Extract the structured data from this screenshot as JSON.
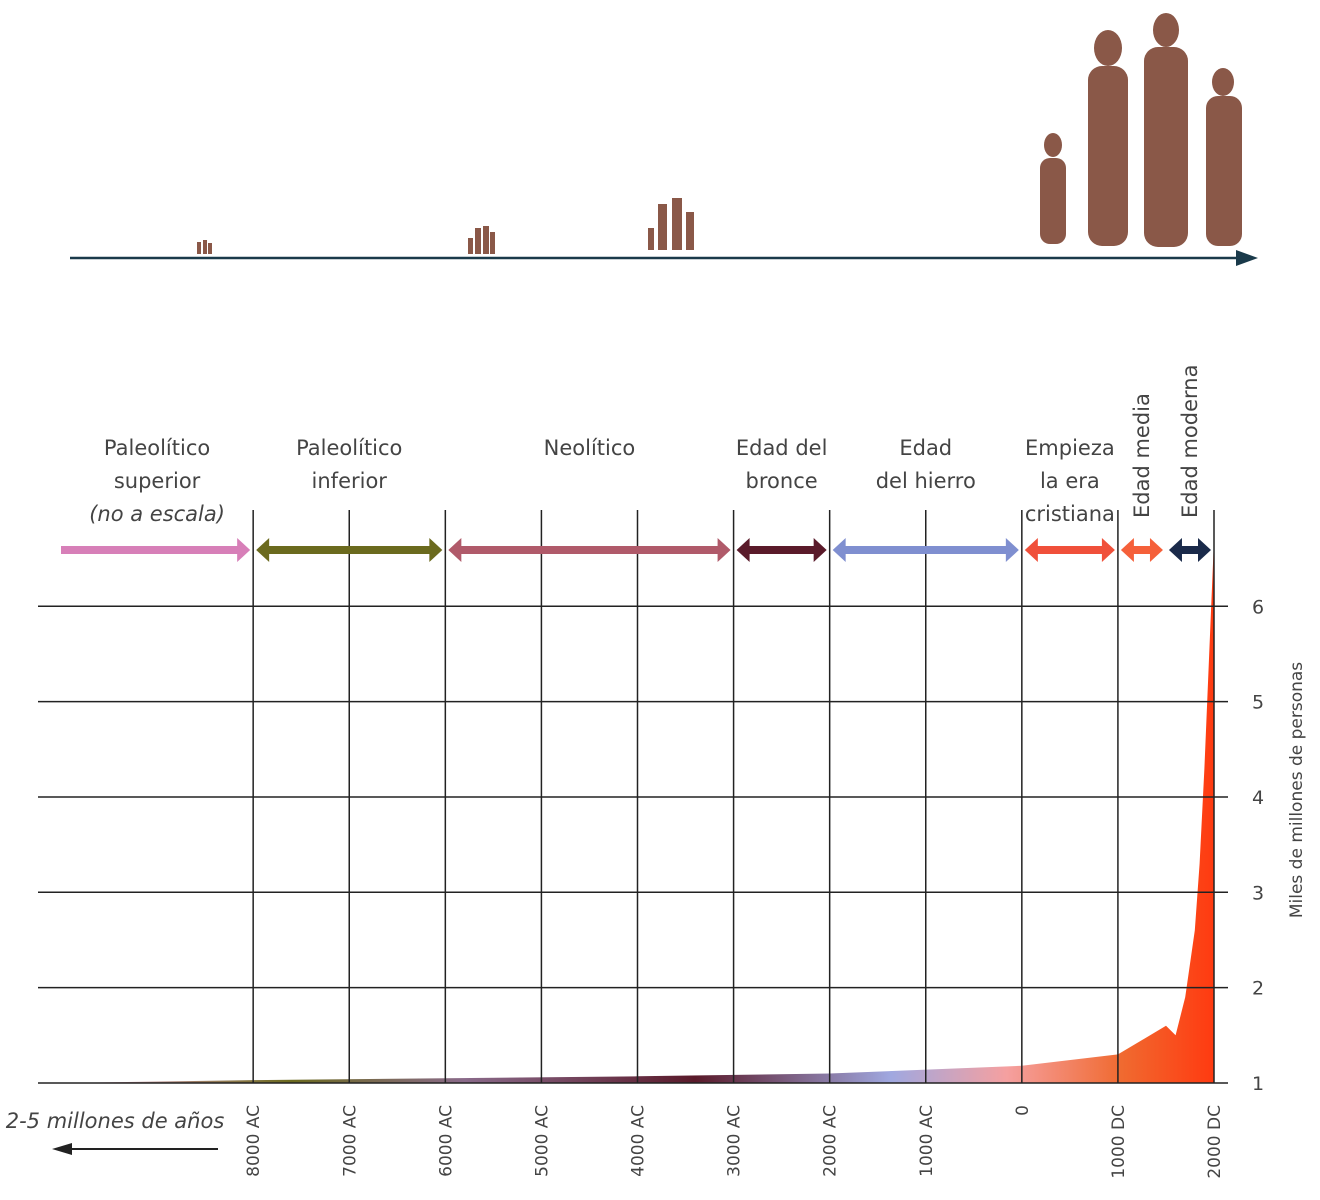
{
  "chart_data": {
    "type": "area",
    "y_title": "Miles de millones de personas",
    "note": "2-5 millones de años",
    "x": [
      -10000,
      -8000,
      -6000,
      -4000,
      -2000,
      0,
      1000,
      1500,
      1600,
      1700,
      1800,
      1850,
      1900,
      1950,
      2000
    ],
    "values": [
      1,
      1.03,
      1.05,
      1.07,
      1.1,
      1.18,
      1.3,
      1.6,
      1.5,
      1.9,
      2.6,
      3.3,
      4.3,
      5.5,
      6.7
    ],
    "xlim": [
      -10000,
      2000
    ],
    "ylim": [
      1,
      6.8
    ],
    "xticks": [
      {
        "value": -8000,
        "label": "8000 AC"
      },
      {
        "value": -7000,
        "label": "7000 AC"
      },
      {
        "value": -6000,
        "label": "6000 AC"
      },
      {
        "value": -5000,
        "label": "5000 AC"
      },
      {
        "value": -4000,
        "label": "4000 AC"
      },
      {
        "value": -3000,
        "label": "3000 AC"
      },
      {
        "value": -2000,
        "label": "2000 AC"
      },
      {
        "value": -1000,
        "label": "1000 AC"
      },
      0,
      {
        "value": 1000,
        "label": "1000 DC"
      },
      {
        "value": 2000,
        "label": "2000 DC"
      }
    ],
    "yticks": [
      1,
      2,
      3,
      4,
      5,
      6
    ],
    "grid": true,
    "periods": [
      {
        "lines": [
          "Paleolítico",
          "superior",
          "(no a escala)"
        ],
        "start": -10000,
        "end": -8000,
        "color": "#d77fb8"
      },
      {
        "lines": [
          "Paleolítico",
          "inferior"
        ],
        "start": -8000,
        "end": -6000,
        "color": "#6b6a1e"
      },
      {
        "lines": [
          "Neolítico"
        ],
        "start": -6000,
        "end": -3000,
        "color": "#b05a6a"
      },
      {
        "lines": [
          "Edad del",
          "bronce"
        ],
        "start": -3000,
        "end": -2000,
        "color": "#5a1a2a"
      },
      {
        "lines": [
          "Edad",
          "del hierro"
        ],
        "start": -2000,
        "end": 0,
        "color": "#7f8fd0"
      },
      {
        "lines": [
          "Empieza",
          "la era",
          "cristiana"
        ],
        "start": 0,
        "end": 1000,
        "color": "#f0503a"
      },
      {
        "lines": [
          "Edad media"
        ],
        "start": 1000,
        "end": 1500,
        "color": "#f5603a"
      },
      {
        "lines": [
          "Edad moderna"
        ],
        "start": 1500,
        "end": 2000,
        "color": "#1a2a4a"
      }
    ]
  }
}
